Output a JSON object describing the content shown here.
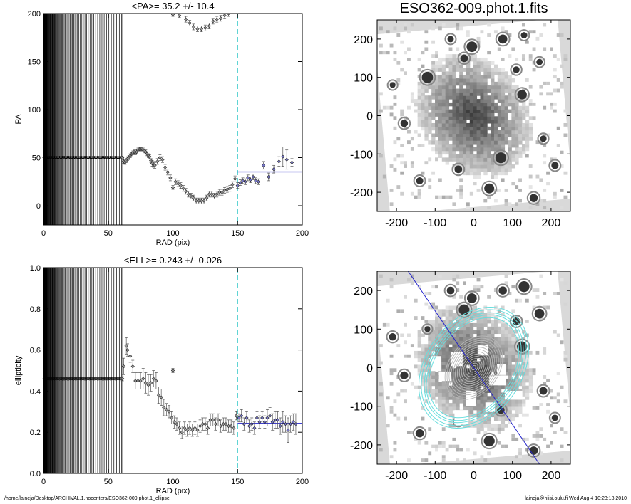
{
  "footer": {
    "path": "/home/laineja/Desktop/ARCHIVAL.1.nocenters/ESO362-009.phot.1_ellipse",
    "stamp": "laineja@hiisi.oulu.fi  Wed Aug  4 10:23:18 2010"
  },
  "chart_data": [
    {
      "id": "pa",
      "type": "scatter",
      "title": "<PA>=  35.2 +/-  10.4",
      "xlabel": "RAD (pix)",
      "ylabel": "PA",
      "xlim": [
        0,
        200
      ],
      "ylim": [
        -20,
        200
      ],
      "xticks": [
        0,
        50,
        100,
        150,
        200
      ],
      "yticks": [
        0,
        50,
        100,
        150,
        200
      ],
      "grid": false,
      "vertical_dashed_line_x": 150,
      "mean_line": {
        "y": 35.2,
        "x_from": 150,
        "x_to": 200
      },
      "inner_flat_value": 50,
      "points": [
        [
          61,
          50,
          1
        ],
        [
          62,
          46,
          2
        ],
        [
          63,
          45,
          2
        ],
        [
          64,
          47,
          2
        ],
        [
          65,
          49,
          2
        ],
        [
          66,
          50,
          2
        ],
        [
          67,
          52,
          2
        ],
        [
          68,
          54,
          2
        ],
        [
          69,
          55,
          2
        ],
        [
          70,
          56,
          2
        ],
        [
          71,
          55,
          2
        ],
        [
          72,
          56,
          2
        ],
        [
          73,
          58,
          2
        ],
        [
          74,
          59,
          2
        ],
        [
          75,
          59,
          2
        ],
        [
          76,
          59,
          2
        ],
        [
          77,
          58,
          2
        ],
        [
          78,
          57,
          2
        ],
        [
          79,
          56,
          2
        ],
        [
          80,
          54,
          2
        ],
        [
          81,
          52,
          2
        ],
        [
          82,
          51,
          2
        ],
        [
          83,
          47,
          2
        ],
        [
          84,
          44,
          3
        ],
        [
          85,
          43,
          3
        ],
        [
          86,
          42,
          3
        ],
        [
          88,
          46,
          3
        ],
        [
          90,
          50,
          3
        ],
        [
          92,
          48,
          3
        ],
        [
          94,
          40,
          3
        ],
        [
          96,
          35,
          3
        ],
        [
          98,
          29,
          3
        ],
        [
          100,
          19,
          2
        ],
        [
          102,
          25,
          3
        ],
        [
          104,
          23,
          3
        ],
        [
          106,
          21,
          3
        ],
        [
          108,
          18,
          3
        ],
        [
          110,
          15,
          3
        ],
        [
          112,
          12,
          3
        ],
        [
          114,
          10,
          3
        ],
        [
          116,
          8,
          3
        ],
        [
          118,
          5,
          3
        ],
        [
          120,
          5,
          3
        ],
        [
          122,
          5,
          3
        ],
        [
          124,
          5,
          3
        ],
        [
          126,
          8,
          3
        ],
        [
          128,
          12,
          3
        ],
        [
          130,
          12,
          3
        ],
        [
          132,
          10,
          3
        ],
        [
          134,
          12,
          3
        ],
        [
          136,
          14,
          3
        ],
        [
          138,
          14,
          3
        ],
        [
          140,
          16,
          3
        ],
        [
          142,
          17,
          3
        ],
        [
          144,
          18,
          3
        ],
        [
          146,
          22,
          3
        ],
        [
          148,
          28,
          3
        ],
        [
          150,
          21,
          3
        ],
        [
          152,
          24,
          3
        ],
        [
          154,
          26,
          3
        ],
        [
          156,
          25,
          3
        ],
        [
          158,
          29,
          3
        ],
        [
          160,
          27,
          3
        ],
        [
          162,
          30,
          3
        ],
        [
          164,
          26,
          3
        ],
        [
          166,
          25,
          3
        ],
        [
          170,
          42,
          4
        ],
        [
          174,
          30,
          4
        ],
        [
          178,
          38,
          4
        ],
        [
          182,
          46,
          5
        ],
        [
          185,
          51,
          10
        ],
        [
          188,
          48,
          10
        ],
        [
          192,
          45,
          4
        ],
        [
          100,
          199,
          2
        ],
        [
          105,
          198,
          2
        ],
        [
          110,
          194,
          3
        ],
        [
          113,
          190,
          3
        ],
        [
          116,
          186,
          3
        ],
        [
          119,
          184,
          3
        ],
        [
          122,
          184,
          3
        ],
        [
          125,
          185,
          3
        ],
        [
          128,
          187,
          3
        ],
        [
          131,
          192,
          3
        ],
        [
          134,
          194,
          3
        ],
        [
          137,
          195,
          3
        ],
        [
          140,
          198,
          3
        ],
        [
          143,
          200,
          3
        ]
      ]
    },
    {
      "id": "ell",
      "type": "scatter",
      "title": "<ELL>= 0.243 +/-  0.026",
      "xlabel": "RAD (pix)",
      "ylabel": "ellipticity",
      "xlim": [
        0,
        200
      ],
      "ylim": [
        0.0,
        1.0
      ],
      "xticks": [
        0,
        50,
        100,
        150,
        200
      ],
      "yticks": [
        0.0,
        0.2,
        0.4,
        0.6,
        0.8,
        1.0
      ],
      "ytick_labels": [
        "0.0",
        "0.2",
        "0.4",
        "0.6",
        "0.8",
        "1.0"
      ],
      "grid": false,
      "vertical_dashed_line_x": 150,
      "mean_line": {
        "y": 0.243,
        "x_from": 150,
        "x_to": 200
      },
      "inner_flat_value": 0.46,
      "points": [
        [
          61,
          0.46,
          0.01
        ],
        [
          62,
          0.52,
          0.04
        ],
        [
          64,
          0.62,
          0.04
        ],
        [
          65,
          0.6,
          0.03
        ],
        [
          67,
          0.57,
          0.03
        ],
        [
          69,
          0.52,
          0.03
        ],
        [
          71,
          0.45,
          0.04
        ],
        [
          73,
          0.45,
          0.04
        ],
        [
          75,
          0.45,
          0.04
        ],
        [
          77,
          0.46,
          0.05
        ],
        [
          79,
          0.44,
          0.05
        ],
        [
          81,
          0.43,
          0.05
        ],
        [
          83,
          0.44,
          0.04
        ],
        [
          85,
          0.46,
          0.04
        ],
        [
          87,
          0.45,
          0.04
        ],
        [
          89,
          0.38,
          0.04
        ],
        [
          91,
          0.37,
          0.04
        ],
        [
          93,
          0.32,
          0.04
        ],
        [
          95,
          0.31,
          0.03
        ],
        [
          97,
          0.3,
          0.03
        ],
        [
          99,
          0.27,
          0.03
        ],
        [
          100,
          0.5,
          0.01
        ],
        [
          101,
          0.25,
          0.03
        ],
        [
          103,
          0.24,
          0.03
        ],
        [
          105,
          0.22,
          0.03
        ],
        [
          107,
          0.2,
          0.03
        ],
        [
          109,
          0.22,
          0.03
        ],
        [
          111,
          0.21,
          0.03
        ],
        [
          113,
          0.22,
          0.03
        ],
        [
          115,
          0.21,
          0.03
        ],
        [
          117,
          0.22,
          0.03
        ],
        [
          119,
          0.21,
          0.03
        ],
        [
          121,
          0.23,
          0.03
        ],
        [
          123,
          0.24,
          0.03
        ],
        [
          125,
          0.24,
          0.03
        ],
        [
          127,
          0.22,
          0.03
        ],
        [
          129,
          0.26,
          0.03
        ],
        [
          131,
          0.26,
          0.03
        ],
        [
          133,
          0.24,
          0.03
        ],
        [
          135,
          0.26,
          0.03
        ],
        [
          137,
          0.23,
          0.03
        ],
        [
          139,
          0.24,
          0.03
        ],
        [
          141,
          0.24,
          0.03
        ],
        [
          143,
          0.23,
          0.03
        ],
        [
          145,
          0.23,
          0.03
        ],
        [
          147,
          0.22,
          0.03
        ],
        [
          149,
          0.28,
          0.02
        ],
        [
          151,
          0.27,
          0.02
        ],
        [
          153,
          0.28,
          0.03
        ],
        [
          155,
          0.24,
          0.03
        ],
        [
          157,
          0.27,
          0.03
        ],
        [
          159,
          0.23,
          0.03
        ],
        [
          161,
          0.24,
          0.03
        ],
        [
          163,
          0.22,
          0.03
        ],
        [
          165,
          0.27,
          0.03
        ],
        [
          167,
          0.25,
          0.03
        ],
        [
          169,
          0.27,
          0.03
        ],
        [
          171,
          0.25,
          0.03
        ],
        [
          173,
          0.27,
          0.04
        ],
        [
          175,
          0.28,
          0.04
        ],
        [
          177,
          0.25,
          0.04
        ],
        [
          179,
          0.26,
          0.04
        ],
        [
          181,
          0.26,
          0.04
        ],
        [
          183,
          0.23,
          0.04
        ],
        [
          185,
          0.25,
          0.05
        ],
        [
          187,
          0.24,
          0.04
        ],
        [
          189,
          0.21,
          0.06
        ],
        [
          191,
          0.24,
          0.04
        ],
        [
          193,
          0.25,
          0.04
        ],
        [
          195,
          0.24,
          0.05
        ]
      ]
    },
    {
      "id": "img1",
      "type": "heatmap",
      "title": "ESO362-009.phot.1.fits",
      "xlim": [
        -250,
        250
      ],
      "ylim": [
        -250,
        250
      ],
      "xticks": [
        -200,
        -100,
        0,
        100,
        200
      ],
      "yticks": [
        -200,
        -100,
        0,
        100,
        200
      ]
    },
    {
      "id": "img2",
      "type": "heatmap",
      "title": "",
      "xlim": [
        -250,
        250
      ],
      "ylim": [
        -250,
        250
      ],
      "xticks": [
        -200,
        -100,
        0,
        100,
        200
      ],
      "yticks": [
        -200,
        -100,
        0,
        100,
        200
      ],
      "major_axis_line": {
        "x1": -170,
        "y1": 250,
        "x2": 170,
        "y2": -250
      },
      "fitted_ellipse_colors": [
        "#b8b8b8",
        "#66dddd"
      ]
    }
  ],
  "colors": {
    "axis": "#000000",
    "data_point": "#333333",
    "mean_line": "#2222cc",
    "dashed_line": "#44cccc",
    "outer_ellipse": "#66dddd",
    "inner_ellipse": "#b8b8b8",
    "image_off": "#d9d9d9"
  }
}
